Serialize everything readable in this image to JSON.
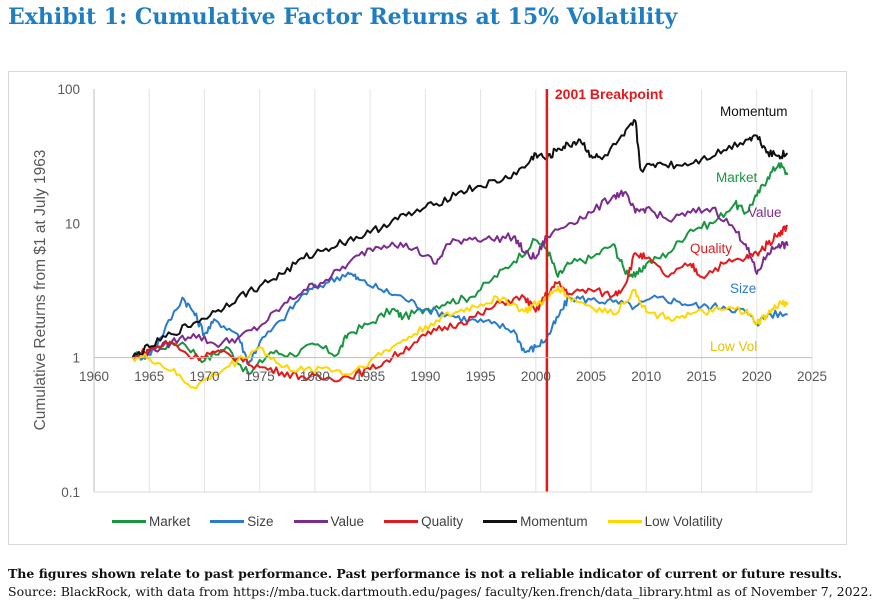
{
  "page": {
    "title": "Exhibit 1: Cumulative Factor Returns at 15% Volatility",
    "disclaimer": "The figures shown relate to past performance. Past performance is not a reliable indicator of current or future results.",
    "source": "Source: BlackRock, with data from https://mba.tuck.dartmouth.edu/pages/ faculty/ken.french/data_library.html as of November 7, 2022."
  },
  "chart_data": {
    "type": "line",
    "title": "",
    "xlabel": "",
    "ylabel": "Cumulative Returns from $1 at July 1963",
    "y_scale": "log",
    "xlim": [
      1960,
      2025
    ],
    "ylim": [
      0.1,
      100
    ],
    "x_ticks": [
      "1960",
      "1965",
      "1970",
      "1975",
      "1980",
      "1985",
      "1990",
      "1995",
      "2000",
      "2005",
      "2010",
      "2015",
      "2020",
      "2025"
    ],
    "y_ticks": [
      "0.1",
      "1",
      "10",
      "100"
    ],
    "grid": "vertical",
    "legend_position": "bottom",
    "annotation": {
      "label": "2001 Breakpoint",
      "x": 2001,
      "color": "#e31a1c"
    },
    "series": [
      {
        "name": "Market",
        "label": "Market",
        "color": "#1a9641",
        "points": [
          [
            1963.5,
            1.0
          ],
          [
            1965,
            1.15
          ],
          [
            1968,
            1.3
          ],
          [
            1970,
            0.95
          ],
          [
            1972,
            1.2
          ],
          [
            1974,
            0.75
          ],
          [
            1976,
            1.1
          ],
          [
            1978,
            1.05
          ],
          [
            1980,
            1.25
          ],
          [
            1982,
            1.05
          ],
          [
            1983,
            1.5
          ],
          [
            1985,
            1.8
          ],
          [
            1987,
            2.3
          ],
          [
            1988,
            2.0
          ],
          [
            1990,
            2.3
          ],
          [
            1992,
            2.6
          ],
          [
            1994,
            2.8
          ],
          [
            1996,
            3.8
          ],
          [
            1998,
            5.2
          ],
          [
            2000,
            7.5
          ],
          [
            2001,
            6.5
          ],
          [
            2002,
            4.0
          ],
          [
            2003,
            5.0
          ],
          [
            2005,
            5.5
          ],
          [
            2007,
            7.0
          ],
          [
            2008,
            4.5
          ],
          [
            2009,
            4.0
          ],
          [
            2010,
            5.0
          ],
          [
            2012,
            6.0
          ],
          [
            2014,
            9.0
          ],
          [
            2016,
            10.0
          ],
          [
            2018,
            14.0
          ],
          [
            2019,
            12.0
          ],
          [
            2020,
            16.0
          ],
          [
            2021,
            22.0
          ],
          [
            2022,
            28.0
          ],
          [
            2022.8,
            23.0
          ]
        ]
      },
      {
        "name": "Size",
        "label": "Size",
        "color": "#2b7bcb",
        "points": [
          [
            1963.5,
            1.0
          ],
          [
            1965,
            1.05
          ],
          [
            1966,
            1.4
          ],
          [
            1968,
            2.8
          ],
          [
            1969,
            2.2
          ],
          [
            1970,
            1.5
          ],
          [
            1971,
            1.9
          ],
          [
            1973,
            1.5
          ],
          [
            1974,
            0.9
          ],
          [
            1975,
            1.3
          ],
          [
            1977,
            1.9
          ],
          [
            1979,
            3.0
          ],
          [
            1981,
            3.6
          ],
          [
            1983,
            4.3
          ],
          [
            1984,
            3.8
          ],
          [
            1986,
            3.2
          ],
          [
            1988,
            2.8
          ],
          [
            1990,
            2.3
          ],
          [
            1992,
            2.1
          ],
          [
            1994,
            1.9
          ],
          [
            1996,
            1.8
          ],
          [
            1998,
            1.6
          ],
          [
            1999,
            1.1
          ],
          [
            2000,
            1.2
          ],
          [
            2001,
            1.4
          ],
          [
            2002,
            2.0
          ],
          [
            2003,
            2.8
          ],
          [
            2005,
            2.7
          ],
          [
            2007,
            2.6
          ],
          [
            2009,
            2.4
          ],
          [
            2011,
            2.8
          ],
          [
            2013,
            2.6
          ],
          [
            2015,
            2.4
          ],
          [
            2017,
            2.4
          ],
          [
            2019,
            2.2
          ],
          [
            2020,
            1.8
          ],
          [
            2021,
            2.1
          ],
          [
            2022.8,
            2.1
          ]
        ]
      },
      {
        "name": "Value",
        "label": "Value",
        "color": "#7b2d8e",
        "points": [
          [
            1963.5,
            1.0
          ],
          [
            1965,
            1.1
          ],
          [
            1967,
            1.3
          ],
          [
            1969,
            1.5
          ],
          [
            1971,
            1.25
          ],
          [
            1973,
            1.4
          ],
          [
            1975,
            1.7
          ],
          [
            1977,
            2.4
          ],
          [
            1979,
            3.2
          ],
          [
            1981,
            3.8
          ],
          [
            1983,
            5.0
          ],
          [
            1985,
            6.5
          ],
          [
            1987,
            7.2
          ],
          [
            1989,
            6.5
          ],
          [
            1991,
            5.0
          ],
          [
            1992,
            7.0
          ],
          [
            1994,
            7.8
          ],
          [
            1996,
            7.6
          ],
          [
            1998,
            8.0
          ],
          [
            1999,
            6.0
          ],
          [
            2000,
            5.5
          ],
          [
            2001,
            8.0
          ],
          [
            2003,
            10.0
          ],
          [
            2005,
            12.0
          ],
          [
            2007,
            16.0
          ],
          [
            2008,
            17.0
          ],
          [
            2009,
            12.0
          ],
          [
            2010,
            13.0
          ],
          [
            2012,
            10.5
          ],
          [
            2014,
            12.0
          ],
          [
            2016,
            13.0
          ],
          [
            2018,
            9.0
          ],
          [
            2019,
            7.0
          ],
          [
            2020,
            4.2
          ],
          [
            2021,
            6.0
          ],
          [
            2022,
            7.0
          ],
          [
            2022.8,
            6.8
          ]
        ]
      },
      {
        "name": "Quality",
        "label": "Quality",
        "color": "#e31a1c",
        "points": [
          [
            1963.5,
            1.0
          ],
          [
            1965,
            1.15
          ],
          [
            1967,
            1.3
          ],
          [
            1969,
            1.0
          ],
          [
            1971,
            1.1
          ],
          [
            1973,
            1.0
          ],
          [
            1975,
            0.85
          ],
          [
            1977,
            0.78
          ],
          [
            1979,
            0.72
          ],
          [
            1981,
            0.7
          ],
          [
            1983,
            0.72
          ],
          [
            1985,
            0.82
          ],
          [
            1987,
            1.0
          ],
          [
            1989,
            1.3
          ],
          [
            1991,
            1.6
          ],
          [
            1993,
            1.8
          ],
          [
            1995,
            2.1
          ],
          [
            1997,
            2.6
          ],
          [
            1999,
            2.8
          ],
          [
            2000,
            2.2
          ],
          [
            2001,
            3.0
          ],
          [
            2002,
            3.6
          ],
          [
            2003,
            3.0
          ],
          [
            2005,
            3.2
          ],
          [
            2007,
            2.9
          ],
          [
            2008,
            3.4
          ],
          [
            2009,
            6.0
          ],
          [
            2010,
            5.5
          ],
          [
            2012,
            4.0
          ],
          [
            2014,
            5.0
          ],
          [
            2015,
            4.0
          ],
          [
            2017,
            5.0
          ],
          [
            2019,
            5.5
          ],
          [
            2020,
            6.0
          ],
          [
            2021,
            7.0
          ],
          [
            2022,
            8.5
          ],
          [
            2022.8,
            9.5
          ]
        ]
      },
      {
        "name": "Momentum",
        "label": "Momentum",
        "color": "#111111",
        "points": [
          [
            1963.5,
            1.0
          ],
          [
            1965,
            1.2
          ],
          [
            1967,
            1.5
          ],
          [
            1969,
            1.8
          ],
          [
            1971,
            2.2
          ],
          [
            1973,
            2.8
          ],
          [
            1975,
            3.4
          ],
          [
            1977,
            4.2
          ],
          [
            1979,
            5.5
          ],
          [
            1981,
            6.5
          ],
          [
            1983,
            7.5
          ],
          [
            1985,
            8.5
          ],
          [
            1987,
            10.5
          ],
          [
            1989,
            12.0
          ],
          [
            1991,
            14.0
          ],
          [
            1993,
            17.0
          ],
          [
            1995,
            19.0
          ],
          [
            1997,
            21.0
          ],
          [
            1999,
            26.0
          ],
          [
            2000,
            33.0
          ],
          [
            2001,
            30.0
          ],
          [
            2002,
            36.0
          ],
          [
            2003,
            38.0
          ],
          [
            2004,
            42.0
          ],
          [
            2005,
            32.0
          ],
          [
            2006,
            30.0
          ],
          [
            2008,
            45.0
          ],
          [
            2009,
            58.0
          ],
          [
            2009.5,
            25.0
          ],
          [
            2011,
            28.0
          ],
          [
            2013,
            27.0
          ],
          [
            2015,
            30.0
          ],
          [
            2017,
            35.0
          ],
          [
            2019,
            42.0
          ],
          [
            2020,
            45.0
          ],
          [
            2021,
            34.0
          ],
          [
            2022,
            32.0
          ],
          [
            2022.8,
            33.0
          ]
        ]
      },
      {
        "name": "Low Volatility",
        "label": "Low Vol",
        "color": "#ffd700",
        "points": [
          [
            1963.5,
            1.0
          ],
          [
            1965,
            1.0
          ],
          [
            1967,
            0.8
          ],
          [
            1969,
            0.6
          ],
          [
            1971,
            0.75
          ],
          [
            1973,
            0.95
          ],
          [
            1975,
            1.2
          ],
          [
            1977,
            0.85
          ],
          [
            1979,
            0.8
          ],
          [
            1981,
            0.85
          ],
          [
            1983,
            0.75
          ],
          [
            1985,
            0.95
          ],
          [
            1987,
            1.2
          ],
          [
            1989,
            1.5
          ],
          [
            1991,
            1.9
          ],
          [
            1993,
            2.2
          ],
          [
            1995,
            2.5
          ],
          [
            1997,
            2.8
          ],
          [
            1999,
            2.2
          ],
          [
            2000,
            2.5
          ],
          [
            2001,
            2.7
          ],
          [
            2002,
            3.4
          ],
          [
            2003,
            2.8
          ],
          [
            2005,
            2.4
          ],
          [
            2007,
            2.1
          ],
          [
            2009,
            3.2
          ],
          [
            2010,
            2.2
          ],
          [
            2012,
            2.0
          ],
          [
            2014,
            2.1
          ],
          [
            2016,
            2.2
          ],
          [
            2018,
            2.3
          ],
          [
            2019,
            2.2
          ],
          [
            2020,
            1.8
          ],
          [
            2021,
            2.1
          ],
          [
            2022,
            2.5
          ],
          [
            2022.8,
            2.6
          ]
        ]
      }
    ]
  },
  "legend": [
    {
      "label": "Market",
      "color": "#1a9641"
    },
    {
      "label": "Size",
      "color": "#2b7bcb"
    },
    {
      "label": "Value",
      "color": "#7b2d8e"
    },
    {
      "label": "Quality",
      "color": "#e31a1c"
    },
    {
      "label": "Momentum",
      "color": "#111111"
    },
    {
      "label": "Low Volatility",
      "color": "#ffd700"
    }
  ]
}
